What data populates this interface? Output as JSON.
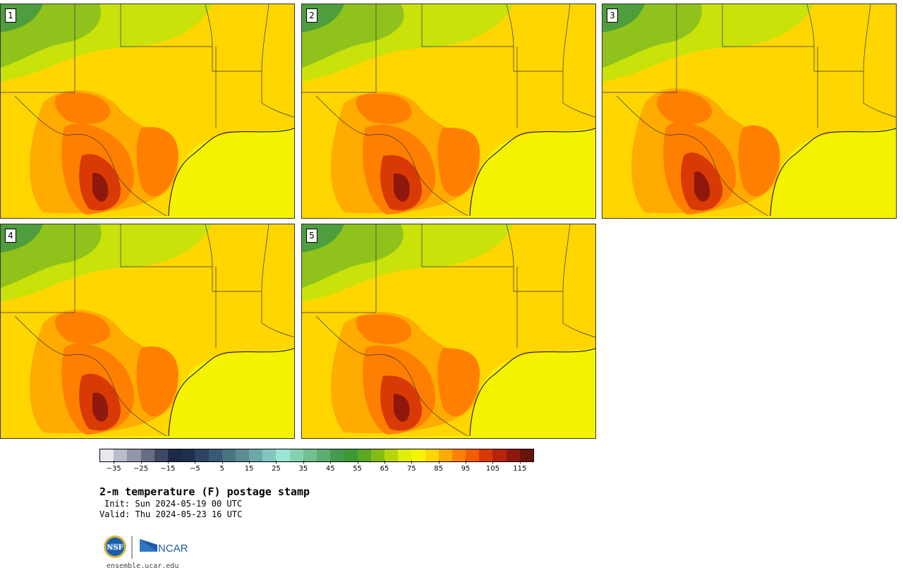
{
  "panels": [
    {
      "label": "1"
    },
    {
      "label": "2"
    },
    {
      "label": "3"
    },
    {
      "label": "4"
    },
    {
      "label": "5"
    }
  ],
  "colorbar": {
    "colors": [
      "#e6e8ee",
      "#b9bccb",
      "#9196a8",
      "#676d84",
      "#3f4862",
      "#1d2a45",
      "#202f4e",
      "#2b4464",
      "#385b75",
      "#477583",
      "#5a8e93",
      "#6ea9a9",
      "#83c6c0",
      "#98e6d4",
      "#86d2b0",
      "#72bf90",
      "#5dad70",
      "#469a50",
      "#3b9a34",
      "#5aa821",
      "#84bc13",
      "#b5d50a",
      "#e1ee06",
      "#f7f400",
      "#ffd600",
      "#ffaa00",
      "#ff8000",
      "#f55b00",
      "#d93a05",
      "#b5240b",
      "#8f180d",
      "#6a1409"
    ],
    "tick_labels": [
      "−35",
      "−25",
      "−15",
      "−5",
      "5",
      "15",
      "25",
      "35",
      "45",
      "55",
      "65",
      "75",
      "85",
      "95",
      "105",
      "115"
    ],
    "range": [
      -40,
      120
    ]
  },
  "title": "2-m temperature (F) postage stamp",
  "init": "Init: Sun 2024-05-19 00 UTC",
  "valid": "Valid: Thu 2024-05-23 16 UTC",
  "logos": {
    "left": "NSF",
    "right": "NCAR"
  },
  "website": "ensemble.ucar.edu"
}
